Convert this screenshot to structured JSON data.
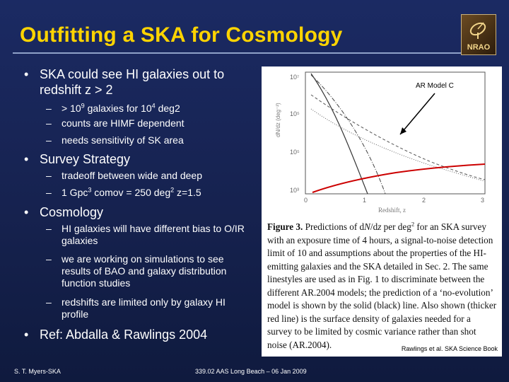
{
  "slide": {
    "title": "Outfitting a SKA for Cosmology",
    "logo_text": "NRAO"
  },
  "bullets": [
    {
      "text": "SKA could see HI galaxies out to redshift z > 2",
      "subs": [
        "> 10⁹ galaxies for 10⁴ deg2",
        "counts are HIMF dependent",
        "needs sensitivity of SK area"
      ]
    },
    {
      "text": "Survey Strategy",
      "subs": [
        "tradeoff between wide and deep",
        "1 Gpc³ comov = 250 deg² z=1.5"
      ]
    },
    {
      "text": "Cosmology",
      "subs": [
        "HI galaxies will have different bias to O/IR galaxies",
        "we are working on simulations to see results of BAO and galaxy distribution function studies",
        "redshifts are limited only by galaxy HI profile"
      ]
    },
    {
      "text": "Ref: Abdalla & Rawlings 2004",
      "subs": []
    }
  ],
  "figure": {
    "annotation": "AR  Model C",
    "xlabel": "Redshift, z",
    "x_ticks": [
      "0",
      "1",
      "2",
      "3"
    ],
    "y_ticks": [
      "10⁷",
      "10⁵",
      "10⁵",
      "10³"
    ],
    "ylabel": "dN/dz (deg⁻²)",
    "caption": "Figure 3. Predictions of dN/dz per deg² for an SKA survey with an exposure time of 4 hours, a signal-to-noise detection limit of 10 and assumptions about the properties of the HI-emitting galaxies and the SKA detailed in Sec. 2. The same linestyles are used as in Fig. 1 to discriminate between the different AR.2004 models; the prediction of a 'no-evolution' model is shown by the solid (black) line. Also shown (thicker red line) is the surface density of galaxies needed for a survey to be limited by cosmic variance rather than shot noise (AR.2004).",
    "credit": "Rawlings et al. SKA Science Book",
    "colors": {
      "model_curves": "#333333",
      "cosmic_variance": "#cc0000"
    }
  },
  "footer": {
    "left": "S. T. Myers-SKA",
    "center": "339.02 AAS Long Beach – 06 Jan 2009"
  }
}
